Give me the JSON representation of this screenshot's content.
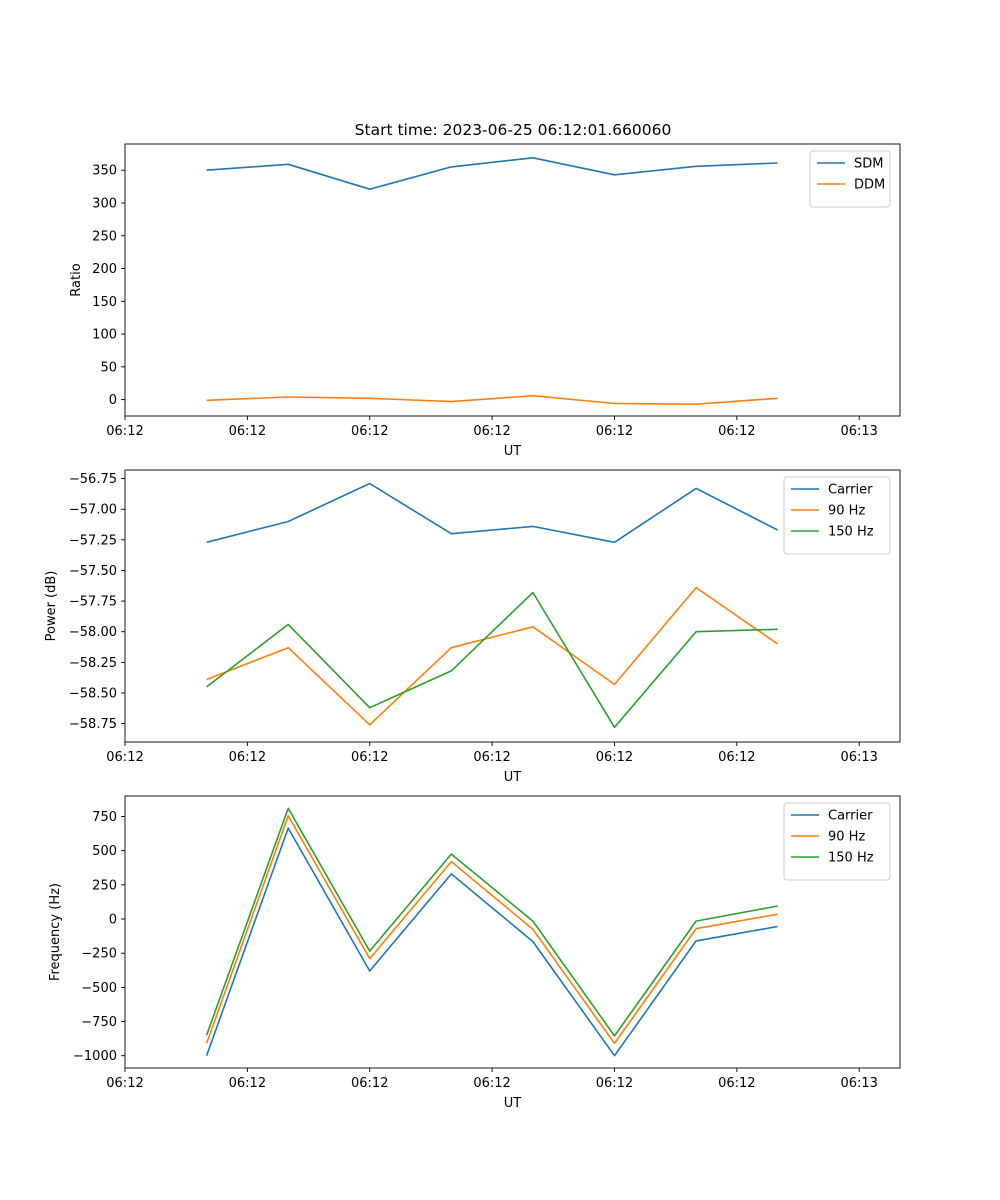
{
  "figure_title": "Start time: 2023-06-25 06:12:01.660060",
  "chart_data": [
    {
      "type": "line",
      "title": "Start time: 2023-06-25 06:12:01.660060",
      "xlabel": "UT",
      "ylabel": "Ratio",
      "x": [
        1.0,
        2.0,
        3.0,
        4.0,
        5.0,
        6.0,
        7.0,
        8.0
      ],
      "xlim": [
        0.0,
        9.5
      ],
      "x_tick_positions": [
        0.0,
        1.5,
        3.0,
        4.5,
        6.0,
        7.5,
        9.0
      ],
      "x_tick_labels": [
        "06:12",
        "06:12",
        "06:12",
        "06:12",
        "06:12",
        "06:12",
        "06:12"
      ],
      "x_tick_labels_end": "06:13",
      "ylim": [
        -25,
        390
      ],
      "y_ticks": [
        0,
        50,
        100,
        150,
        200,
        250,
        300,
        350
      ],
      "legend": "upper right",
      "series": [
        {
          "name": "SDM",
          "color": "#1f77b4",
          "values": [
            350,
            359,
            321,
            355,
            369,
            343,
            356,
            361
          ]
        },
        {
          "name": "DDM",
          "color": "#ff7f0e",
          "values": [
            -1,
            4,
            2,
            -3,
            6,
            -6,
            -7,
            2
          ]
        }
      ]
    },
    {
      "type": "line",
      "title": "",
      "xlabel": "UT",
      "ylabel": "Power (dB)",
      "x": [
        1.0,
        2.0,
        3.0,
        4.0,
        5.0,
        6.0,
        7.0,
        8.0
      ],
      "xlim": [
        0.0,
        9.5
      ],
      "x_tick_positions": [
        0.0,
        1.5,
        3.0,
        4.5,
        6.0,
        7.5,
        9.0
      ],
      "x_tick_labels": [
        "06:12",
        "06:12",
        "06:12",
        "06:12",
        "06:12",
        "06:12",
        "06:12"
      ],
      "x_tick_labels_end": "06:13",
      "ylim": [
        -58.9,
        -56.68
      ],
      "y_ticks": [
        -58.75,
        -58.5,
        -58.25,
        -58.0,
        -57.75,
        -57.5,
        -57.25,
        -57.0,
        -56.75
      ],
      "y_tick_labels": [
        "−58.75",
        "−58.50",
        "−58.25",
        "−58.00",
        "−57.75",
        "−57.50",
        "−57.25",
        "−57.00",
        "−56.75"
      ],
      "legend": "upper right",
      "series": [
        {
          "name": "Carrier",
          "color": "#1f77b4",
          "values": [
            -57.27,
            -57.1,
            -56.79,
            -57.2,
            -57.14,
            -57.27,
            -56.83,
            -57.17
          ]
        },
        {
          "name": "90 Hz",
          "color": "#ff7f0e",
          "values": [
            -58.39,
            -58.13,
            -58.76,
            -58.13,
            -57.96,
            -58.43,
            -57.64,
            -58.1
          ]
        },
        {
          "name": "150 Hz",
          "color": "#2ca02c",
          "values": [
            -58.45,
            -57.94,
            -58.62,
            -58.32,
            -57.68,
            -58.78,
            -58.0,
            -57.98
          ]
        }
      ]
    },
    {
      "type": "line",
      "title": "",
      "xlabel": "UT",
      "ylabel": "Frequency (Hz)",
      "x": [
        1.0,
        2.0,
        3.0,
        4.0,
        5.0,
        6.0,
        7.0,
        8.0
      ],
      "xlim": [
        0.0,
        9.5
      ],
      "x_tick_positions": [
        0.0,
        1.5,
        3.0,
        4.5,
        6.0,
        7.5,
        9.0
      ],
      "x_tick_labels": [
        "06:12",
        "06:12",
        "06:12",
        "06:12",
        "06:12",
        "06:12",
        "06:12"
      ],
      "x_tick_labels_end": "06:13",
      "ylim": [
        -1090,
        900
      ],
      "y_ticks": [
        -1000,
        -750,
        -500,
        -250,
        0,
        250,
        500,
        750
      ],
      "y_tick_labels": [
        "−1000",
        "−750",
        "−500",
        "−250",
        "0",
        "250",
        "500",
        "750"
      ],
      "legend": "upper right",
      "series": [
        {
          "name": "Carrier",
          "color": "#1f77b4",
          "values": [
            -1000,
            665,
            -380,
            330,
            -165,
            -1000,
            -160,
            -55
          ]
        },
        {
          "name": "90 Hz",
          "color": "#ff7f0e",
          "values": [
            -910,
            755,
            -290,
            420,
            -75,
            -910,
            -70,
            35
          ]
        },
        {
          "name": "150 Hz",
          "color": "#2ca02c",
          "values": [
            -850,
            810,
            -235,
            475,
            -15,
            -855,
            -15,
            95
          ]
        }
      ]
    }
  ]
}
